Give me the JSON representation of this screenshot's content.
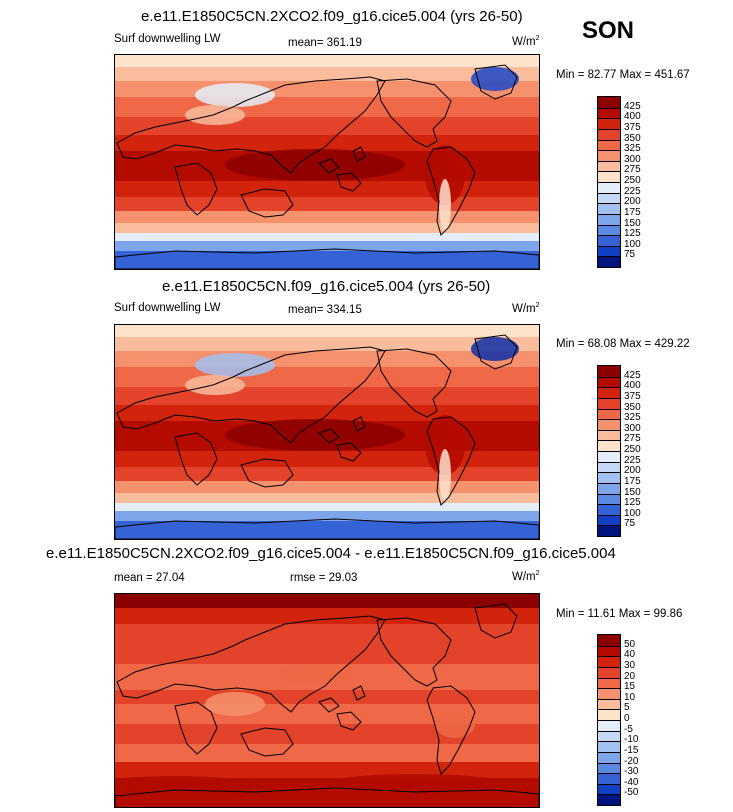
{
  "season": "SON",
  "panels": [
    {
      "title": "e.e11.E1850C5CN.2XCO2.f09_g16.cice5.004 (yrs 26-50)",
      "left_label": "Surf downwelling LW",
      "mid_label": "mean= 361.19",
      "units": "W/m",
      "units_sup": "2",
      "minmax": "Min = 82.77 Max = 451.67",
      "levels": [
        "425",
        "400",
        "375",
        "350",
        "325",
        "300",
        "275",
        "250",
        "225",
        "200",
        "175",
        "150",
        "125",
        "100",
        "75"
      ],
      "colors": [
        "#8b0000",
        "#b30b00",
        "#d2240d",
        "#e2432a",
        "#ef6847",
        "#f5916c",
        "#f9bc9c",
        "#fde2cc",
        "#e4eefb",
        "#c5d8f6",
        "#a2c0f0",
        "#7ea5ea",
        "#5a88e2",
        "#3563d6",
        "#1140c4",
        "#00147e"
      ],
      "cold_color": "#1c46c8"
    },
    {
      "title": "e.e11.E1850C5CN.f09_g16.cice5.004 (yrs 26-50)",
      "left_label": "Surf downwelling LW",
      "mid_label": "mean= 334.15",
      "units": "W/m",
      "units_sup": "2",
      "minmax": "Min = 68.08 Max = 429.22",
      "levels": [
        "425",
        "400",
        "375",
        "350",
        "325",
        "300",
        "275",
        "250",
        "225",
        "200",
        "175",
        "150",
        "125",
        "100",
        "75"
      ],
      "colors": [
        "#8b0000",
        "#b30b00",
        "#d2240d",
        "#e2432a",
        "#ef6847",
        "#f5916c",
        "#f9bc9c",
        "#fde2cc",
        "#e4eefb",
        "#c5d8f6",
        "#a2c0f0",
        "#7ea5ea",
        "#5a88e2",
        "#3563d6",
        "#1140c4",
        "#00147e"
      ],
      "cold_color": "#0f2fa8"
    },
    {
      "title": "e.e11.E1850C5CN.2XCO2.f09_g16.cice5.004 - e.e11.E1850C5CN.f09_g16.cice5.004",
      "left_label": "mean = 27.04",
      "mid_label": "rmse = 29.03",
      "units": "W/m",
      "units_sup": "2",
      "minmax": "Min = 11.61 Max = 99.86",
      "levels": [
        "50",
        "40",
        "30",
        "20",
        "15",
        "10",
        "5",
        "0",
        "-5",
        "-10",
        "-15",
        "-20",
        "-30",
        "-40",
        "-50"
      ],
      "colors": [
        "#8b0000",
        "#b30b00",
        "#d2240d",
        "#e2432a",
        "#ef6847",
        "#f5916c",
        "#f9bc9c",
        "#fde2cc",
        "#e4eefb",
        "#c5d8f6",
        "#a2c0f0",
        "#7ea5ea",
        "#5a88e2",
        "#3563d6",
        "#1140c4",
        "#00147e"
      ],
      "cold_color": "#e2432a"
    }
  ]
}
